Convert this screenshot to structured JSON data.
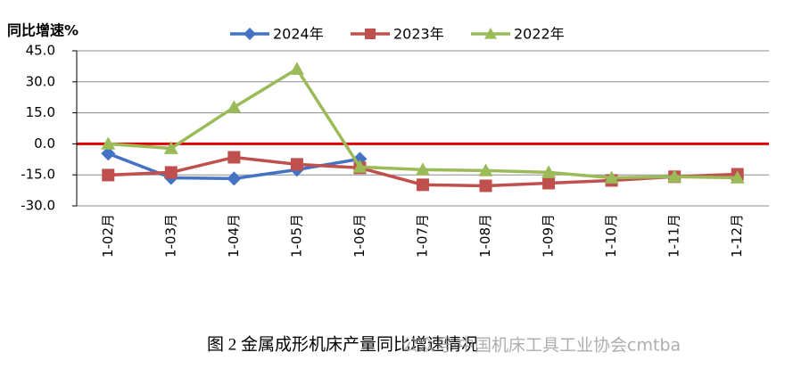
{
  "chart_data": {
    "type": "line",
    "y_label": "同比增速%",
    "caption": "图 2  金属成形机床产量同比增速情况",
    "watermark": "公众号·中国机床工具工业协会cmtba",
    "categories": [
      "1-02月",
      "1-03月",
      "1-04月",
      "1-05月",
      "1-06月",
      "1-07月",
      "1-08月",
      "1-09月",
      "1-10月",
      "1-11月",
      "1-12月"
    ],
    "series": [
      {
        "name": "2024年",
        "color": "#4472c4",
        "marker": "diamond",
        "values": [
          -4.7,
          -16.4,
          -16.8,
          -12.5,
          -7.3,
          null,
          null,
          null,
          null,
          null,
          null
        ]
      },
      {
        "name": "2023年",
        "color": "#c0504d",
        "marker": "square",
        "values": [
          -15.1,
          -13.8,
          -6.5,
          -9.9,
          -11.6,
          -19.8,
          -20.3,
          -19.0,
          -17.7,
          -15.9,
          -14.7
        ]
      },
      {
        "name": "2022年",
        "color": "#9bbb59",
        "marker": "triangle",
        "values": [
          0,
          -2.2,
          17.7,
          36.2,
          -11.2,
          -12.5,
          -12.9,
          -13.8,
          -16.4,
          -15.9,
          -16.4
        ]
      }
    ],
    "ylim": [
      -30,
      45
    ],
    "yticks": [
      {
        "value": 45,
        "label": "45.0"
      },
      {
        "value": 30,
        "label": "30.0"
      },
      {
        "value": 15,
        "label": "15.0"
      },
      {
        "value": 0,
        "label": "0.0"
      },
      {
        "value": -15,
        "label": "-15.0"
      },
      {
        "value": -30,
        "label": "-30.0"
      }
    ],
    "grid": true,
    "zero_line_color": "#e00000",
    "legend": "top"
  }
}
